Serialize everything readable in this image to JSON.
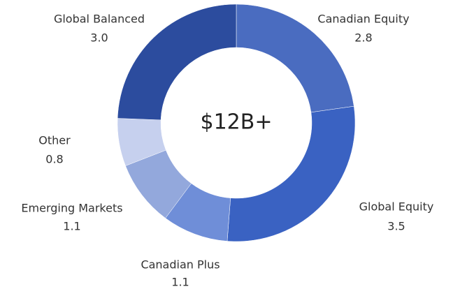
{
  "chart_data": {
    "type": "donut",
    "center_label": "$12B+",
    "categories": [
      "Canadian Equity",
      "Global Equity",
      "Canadian Plus",
      "Emerging Markets",
      "Other",
      "Global Balanced"
    ],
    "values": [
      2.8,
      3.5,
      1.1,
      1.1,
      0.8,
      3.0
    ],
    "value_labels": [
      "2.8",
      "3.5",
      "1.1",
      "1.1",
      "0.8",
      "3.0"
    ],
    "colors": [
      "#4a6cc0",
      "#3a62c2",
      "#6f8ed8",
      "#93a8dc",
      "#c6d0ee",
      "#2c4c9e"
    ]
  }
}
